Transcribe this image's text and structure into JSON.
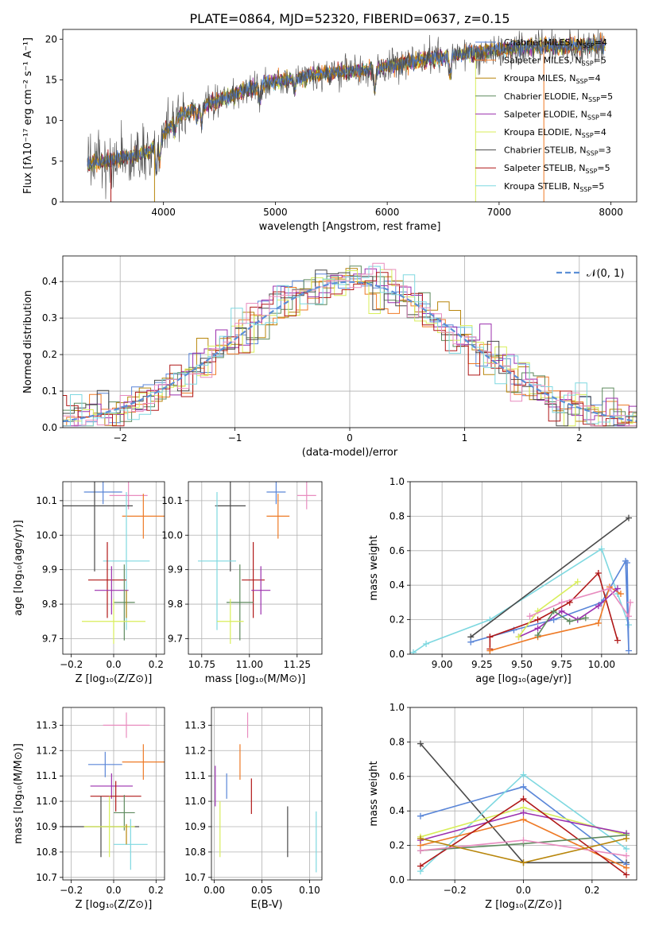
{
  "colors": {
    "Chabrier MILES": "#5a86d8",
    "Salpeter MILES": "#ee7a26",
    "Kroupa MILES": "#b8860b",
    "Chabrier ELODIE": "#5e8a5e",
    "Salpeter ELODIE": "#9b2fae",
    "Kroupa ELODIE": "#d8ee5a",
    "Chabrier STELIB": "#4a4a4a",
    "Salpeter STELIB": "#b01818",
    "Kroupa STELIB": "#7ed8e0",
    "pink": "#e88cbf",
    "normal": "#5b8fd6"
  },
  "chart_data": [
    {
      "id": "spectrum",
      "type": "line",
      "title": "PLATE=0864, MJD=52320, FIBERID=0637, z=0.15",
      "xlabel": "wavelength [Angstrom, rest frame]",
      "ylabel": "Flux [fλ10⁻¹⁷ erg cm⁻² s⁻¹ A⁻¹]",
      "xlim": [
        3100,
        8230
      ],
      "ylim": [
        0,
        21.2
      ],
      "xticks": [
        4000,
        5000,
        6000,
        7000,
        8000
      ],
      "yticks": [
        0,
        5,
        10,
        15,
        20
      ],
      "legend_position": "top-right",
      "continuum_knots": {
        "x": [
          3320,
          3500,
          3700,
          3850,
          3950,
          4000,
          4150,
          4300,
          4500,
          4700,
          4900,
          5100,
          5300,
          5500,
          5700,
          5900,
          6100,
          6300,
          6500,
          6700,
          6900,
          7100,
          7300,
          7500,
          7700,
          7900
        ],
        "y": [
          4.7,
          5.0,
          5.6,
          6.0,
          7.2,
          8.4,
          10.6,
          11.5,
          12.5,
          13.5,
          14.5,
          15.0,
          15.5,
          15.9,
          16.1,
          16.3,
          16.9,
          17.4,
          17.8,
          18.2,
          18.6,
          18.9,
          19.0,
          19.1,
          19.2,
          19.2
        ]
      },
      "legend": [
        {
          "imf": "Chabrier",
          "lib": "MILES",
          "n": "4"
        },
        {
          "imf": "Salpeter",
          "lib": "MILES",
          "n": "5"
        },
        {
          "imf": "Kroupa",
          "lib": "MILES",
          "n": "4"
        },
        {
          "imf": "Chabrier",
          "lib": "ELODIE",
          "n": "5"
        },
        {
          "imf": "Salpeter",
          "lib": "ELODIE",
          "n": "4"
        },
        {
          "imf": "Kroupa",
          "lib": "ELODIE",
          "n": "4"
        },
        {
          "imf": "Chabrier",
          "lib": "STELIB",
          "n": "3"
        },
        {
          "imf": "Salpeter",
          "lib": "STELIB",
          "n": "5"
        },
        {
          "imf": "Kroupa",
          "lib": "STELIB",
          "n": "5"
        }
      ]
    },
    {
      "id": "residuals",
      "type": "line",
      "xlabel": "(data-model)/error",
      "ylabel": "Normed distribution",
      "xlim": [
        -2.5,
        2.5
      ],
      "ylim": [
        0,
        0.47
      ],
      "xticks": [
        -2,
        -1,
        0,
        1,
        2
      ],
      "yticks": [
        0.0,
        0.1,
        0.2,
        0.3,
        0.4
      ],
      "grid": true,
      "legend_position": "top-right",
      "legend": "𝒩(0, 1)",
      "bin_width": 0.1
    },
    {
      "id": "age_Z",
      "type": "scatter",
      "xlabel": "Z [log₁₀(Z/Z⊙)]",
      "ylabel": "age  [log₁₀(age/yr)]",
      "xlim": [
        -0.24,
        0.24
      ],
      "ylim": [
        9.655,
        10.155
      ],
      "xticks": [
        -0.2,
        0.0,
        0.2
      ],
      "yticks": [
        9.7,
        9.8,
        9.9,
        10.0,
        10.1
      ],
      "grid": true,
      "points": [
        {
          "c": "Chabrier MILES",
          "x": -0.05,
          "xe": 0.09,
          "y": 10.125,
          "ye": 0.035
        },
        {
          "c": "pink",
          "x": 0.07,
          "xe": 0.09,
          "y": 10.115,
          "ye": 0.04
        },
        {
          "c": "Chabrier STELIB",
          "x": -0.09,
          "xe": 0.18,
          "y": 10.085,
          "ye": 0.19
        },
        {
          "c": "Salpeter MILES",
          "x": 0.14,
          "xe": 0.1,
          "y": 10.055,
          "ye": 0.065
        },
        {
          "c": "Kroupa STELIB",
          "x": 0.06,
          "xe": 0.11,
          "y": 9.925,
          "ye": 0.2
        },
        {
          "c": "Salpeter STELIB",
          "x": -0.03,
          "xe": 0.09,
          "y": 9.87,
          "ye": 0.11
        },
        {
          "c": "Salpeter ELODIE",
          "x": -0.01,
          "xe": 0.08,
          "y": 9.84,
          "ye": 0.07
        },
        {
          "c": "Chabrier ELODIE",
          "x": 0.05,
          "xe": 0.05,
          "y": 9.805,
          "ye": 0.11
        },
        {
          "c": "Kroupa ELODIE",
          "x": 0.0,
          "xe": 0.15,
          "y": 9.75,
          "ye": 0.065
        },
        {
          "c": "Kroupa MILES",
          "x": 0.06,
          "xe": 0.0,
          "y": 9.8,
          "ye": 0.04
        }
      ]
    },
    {
      "id": "age_mass",
      "type": "scatter",
      "xlabel": "mass [log₁₀(M/M⊙)]",
      "xlim": [
        10.68,
        11.38
      ],
      "ylim": [
        9.655,
        10.155
      ],
      "xticks": [
        10.75,
        11.0,
        11.25
      ],
      "yticks": [
        9.7,
        9.8,
        9.9,
        10.0,
        10.1
      ],
      "grid": true,
      "points": [
        {
          "c": "Chabrier MILES",
          "x": 11.14,
          "xe": 0.05,
          "y": 10.125,
          "ye": 0.035
        },
        {
          "c": "pink",
          "x": 11.3,
          "xe": 0.05,
          "y": 10.115,
          "ye": 0.04
        },
        {
          "c": "Chabrier STELIB",
          "x": 10.9,
          "xe": 0.08,
          "y": 10.085,
          "ye": 0.19
        },
        {
          "c": "Salpeter MILES",
          "x": 11.15,
          "xe": 0.06,
          "y": 10.055,
          "ye": 0.065
        },
        {
          "c": "Kroupa STELIB",
          "x": 10.83,
          "xe": 0.1,
          "y": 9.925,
          "ye": 0.2
        },
        {
          "c": "Salpeter STELIB",
          "x": 11.02,
          "xe": 0.06,
          "y": 9.87,
          "ye": 0.11
        },
        {
          "c": "Salpeter ELODIE",
          "x": 11.06,
          "xe": 0.05,
          "y": 9.84,
          "ye": 0.07
        },
        {
          "c": "Chabrier ELODIE",
          "x": 10.95,
          "xe": 0.07,
          "y": 9.805,
          "ye": 0.11
        },
        {
          "c": "Kroupa ELODIE",
          "x": 10.9,
          "xe": 0.07,
          "y": 9.75,
          "ye": 0.065
        }
      ]
    },
    {
      "id": "weight_age",
      "type": "line",
      "xlabel": "age  [log₁₀(age/yr)]",
      "ylabel": "mass weight",
      "xlim": [
        8.8,
        10.22
      ],
      "ylim": [
        0,
        1.0
      ],
      "xticks": [
        9.0,
        9.25,
        9.5,
        9.75,
        10.0
      ],
      "yticks": [
        0.0,
        0.2,
        0.4,
        0.6,
        0.8,
        1.0
      ],
      "grid": true,
      "series": [
        {
          "c": "Kroupa STELIB",
          "x": [
            8.82,
            8.9,
            9.3,
            10.0,
            10.1,
            10.17
          ],
          "y": [
            0.01,
            0.06,
            0.2,
            0.61,
            0.35,
            0.17
          ]
        },
        {
          "c": "Chabrier STELIB",
          "x": [
            9.18,
            10.17
          ],
          "y": [
            0.1,
            0.79
          ]
        },
        {
          "c": "Chabrier MILES",
          "x": [
            9.18,
            9.45,
            9.7,
            10.0,
            10.15,
            10.17,
            10.16
          ],
          "y": [
            0.07,
            0.14,
            0.2,
            0.3,
            0.54,
            0.02,
            0.53
          ]
        },
        {
          "c": "Salpeter STELIB",
          "x": [
            9.3,
            9.3,
            9.6,
            9.8,
            9.98,
            10.1
          ],
          "y": [
            0.03,
            0.1,
            0.2,
            0.3,
            0.47,
            0.08
          ]
        },
        {
          "c": "Salpeter MILES",
          "x": [
            9.3,
            9.6,
            9.98,
            10.05,
            10.12
          ],
          "y": [
            0.02,
            0.1,
            0.18,
            0.39,
            0.35
          ]
        },
        {
          "c": "Salpeter ELODIE",
          "x": [
            9.48,
            9.6,
            9.75,
            9.85,
            9.98,
            10.1
          ],
          "y": [
            0.1,
            0.15,
            0.25,
            0.2,
            0.28,
            0.38
          ]
        },
        {
          "c": "Kroupa ELODIE",
          "x": [
            9.48,
            9.6,
            9.85
          ],
          "y": [
            0.1,
            0.25,
            0.42
          ]
        },
        {
          "c": "Chabrier ELODIE",
          "x": [
            9.6,
            9.7,
            9.8,
            9.9
          ],
          "y": [
            0.11,
            0.25,
            0.19,
            0.21
          ]
        },
        {
          "c": "pink",
          "x": [
            9.55,
            9.75,
            10.05,
            10.17,
            10.18
          ],
          "y": [
            0.22,
            0.3,
            0.38,
            0.22,
            0.3
          ]
        }
      ]
    },
    {
      "id": "mass_Z",
      "type": "scatter",
      "xlabel": "Z [log₁₀(Z/Z⊙)]",
      "ylabel": "mass [log₁₀(M/M⊙)]",
      "xlim": [
        -0.24,
        0.24
      ],
      "ylim": [
        10.69,
        11.37
      ],
      "xticks": [
        -0.2,
        0.0,
        0.2
      ],
      "yticks": [
        10.7,
        10.8,
        10.9,
        11.0,
        11.1,
        11.2,
        11.3
      ],
      "grid": true,
      "points": [
        {
          "c": "pink",
          "x": 0.06,
          "xe": 0.11,
          "y": 11.3,
          "ye": 0.05
        },
        {
          "c": "Salpeter MILES",
          "x": 0.14,
          "xe": 0.1,
          "y": 11.155,
          "ye": 0.07
        },
        {
          "c": "Chabrier MILES",
          "x": -0.04,
          "xe": 0.08,
          "y": 11.145,
          "ye": 0.05
        },
        {
          "c": "Salpeter ELODIE",
          "x": -0.01,
          "xe": 0.1,
          "y": 11.06,
          "ye": 0.05
        },
        {
          "c": "Salpeter STELIB",
          "x": 0.01,
          "xe": 0.12,
          "y": 11.02,
          "ye": 0.06
        },
        {
          "c": "Chabrier ELODIE",
          "x": 0.05,
          "xe": 0.05,
          "y": 10.955,
          "ye": 0.07
        },
        {
          "c": "Chabrier STELIB",
          "x": -0.06,
          "xe": 0.18,
          "y": 10.9,
          "ye": 0.12
        },
        {
          "c": "Kroupa ELODIE",
          "x": -0.02,
          "xe": 0.12,
          "y": 10.9,
          "ye": 0.12
        },
        {
          "c": "Kroupa STELIB",
          "x": 0.08,
          "xe": 0.08,
          "y": 10.83,
          "ye": 0.1
        },
        {
          "c": "Kroupa MILES",
          "x": 0.06,
          "xe": 0.0,
          "y": 10.87,
          "ye": 0.04
        }
      ]
    },
    {
      "id": "mass_EBV",
      "type": "scatter",
      "xlabel": "E(B-V)",
      "xlim": [
        -0.003,
        0.113
      ],
      "ylim": [
        10.69,
        11.37
      ],
      "xticks": [
        0.0,
        0.05,
        0.1
      ],
      "xtick_labels": [
        "0.00",
        "0.05",
        "0.10"
      ],
      "yticks": [
        10.7,
        10.8,
        10.9,
        11.0,
        11.1,
        11.2,
        11.3
      ],
      "grid": true,
      "points": [
        {
          "c": "pink",
          "x": 0.035,
          "y": 11.3,
          "ye": 0.05
        },
        {
          "c": "Salpeter MILES",
          "x": 0.027,
          "y": 11.155,
          "ye": 0.07
        },
        {
          "c": "Chabrier MILES",
          "x": 0.013,
          "y": 11.06,
          "ye": 0.05
        },
        {
          "c": "Salpeter ELODIE",
          "x": 0.001,
          "y": 11.06,
          "ye": 0.08
        },
        {
          "c": "Salpeter STELIB",
          "x": 0.039,
          "y": 11.02,
          "ye": 0.07
        },
        {
          "c": "Chabrier STELIB",
          "x": 0.077,
          "y": 10.88,
          "ye": 0.1
        },
        {
          "c": "Kroupa ELODIE",
          "x": 0.006,
          "y": 10.89,
          "ye": 0.11
        },
        {
          "c": "Kroupa STELIB",
          "x": 0.107,
          "y": 10.84,
          "ye": 0.12
        }
      ]
    },
    {
      "id": "weight_Z",
      "type": "line",
      "xlabel": "Z [log₁₀(Z/Z⊙)]",
      "ylabel": "mass weight",
      "xlim": [
        -0.33,
        0.33
      ],
      "ylim": [
        0,
        1.0
      ],
      "xticks": [
        -0.2,
        0.0,
        0.2
      ],
      "yticks": [
        0.0,
        0.2,
        0.4,
        0.6,
        0.8,
        1.0
      ],
      "grid": true,
      "series": [
        {
          "c": "Chabrier STELIB",
          "x": [
            -0.3,
            0.0,
            0.3
          ],
          "y": [
            0.79,
            0.1,
            0.1
          ]
        },
        {
          "c": "Chabrier MILES",
          "x": [
            -0.3,
            0.0,
            0.3
          ],
          "y": [
            0.37,
            0.54,
            0.09
          ]
        },
        {
          "c": "Kroupa STELIB",
          "x": [
            -0.3,
            0.0,
            0.3
          ],
          "y": [
            0.05,
            0.61,
            0.18
          ]
        },
        {
          "c": "Kroupa ELODIE",
          "x": [
            -0.3,
            0.0,
            0.3
          ],
          "y": [
            0.25,
            0.42,
            0.26
          ]
        },
        {
          "c": "Salpeter MILES",
          "x": [
            -0.3,
            0.0,
            0.3
          ],
          "y": [
            0.2,
            0.35,
            0.07
          ]
        },
        {
          "c": "Salpeter ELODIE",
          "x": [
            -0.3,
            0.0,
            0.3
          ],
          "y": [
            0.23,
            0.39,
            0.27
          ]
        },
        {
          "c": "Salpeter STELIB",
          "x": [
            -0.3,
            0.0,
            0.3
          ],
          "y": [
            0.08,
            0.47,
            0.03
          ]
        },
        {
          "c": "Chabrier ELODIE",
          "x": [
            -0.3,
            0.0,
            0.3
          ],
          "y": [
            0.17,
            0.21,
            0.26
          ]
        },
        {
          "c": "pink",
          "x": [
            -0.3,
            0.0,
            0.3
          ],
          "y": [
            0.17,
            0.23,
            0.14
          ]
        },
        {
          "c": "Kroupa MILES",
          "x": [
            -0.3,
            0.0,
            0.3
          ],
          "y": [
            0.24,
            0.1,
            0.24
          ]
        }
      ]
    }
  ]
}
